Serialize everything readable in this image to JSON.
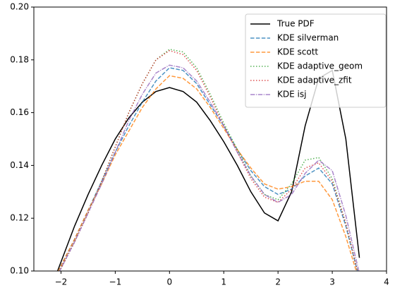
{
  "chart_data": {
    "type": "line",
    "x": [
      -2.1,
      -1.75,
      -1.5,
      -1.25,
      -1,
      -0.75,
      -0.5,
      -0.25,
      0,
      0.25,
      0.5,
      0.75,
      1,
      1.25,
      1.5,
      1.75,
      2,
      2.25,
      2.5,
      2.75,
      3,
      3.25,
      3.5
    ],
    "series": [
      {
        "name": "True PDF",
        "color": "#000000",
        "linestyle": "solid",
        "values": [
          0.098,
          0.117,
          0.129,
          0.14,
          0.15,
          0.158,
          0.164,
          0.168,
          0.1695,
          0.168,
          0.164,
          0.157,
          0.149,
          0.14,
          0.13,
          0.122,
          0.119,
          0.13,
          0.155,
          0.173,
          0.176,
          0.15,
          0.105
        ]
      },
      {
        "name": "KDE silverman",
        "color": "#1f77b4",
        "linestyle": "dashed",
        "values": [
          0.098,
          0.112,
          0.123,
          0.134,
          0.145,
          0.155,
          0.164,
          0.172,
          0.177,
          0.176,
          0.171,
          0.163,
          0.155,
          0.146,
          0.138,
          0.132,
          0.129,
          0.131,
          0.136,
          0.139,
          0.133,
          0.117,
          0.097
        ]
      },
      {
        "name": "KDE scott",
        "color": "#ff7f0e",
        "linestyle": "dashed",
        "values": [
          0.098,
          0.112,
          0.123,
          0.133,
          0.144,
          0.153,
          0.162,
          0.169,
          0.174,
          0.173,
          0.169,
          0.162,
          0.154,
          0.146,
          0.139,
          0.133,
          0.131,
          0.132,
          0.134,
          0.134,
          0.127,
          0.113,
          0.096
        ]
      },
      {
        "name": "KDE adaptive_geom",
        "color": "#2ca02c",
        "linestyle": "dotted",
        "values": [
          0.097,
          0.111,
          0.122,
          0.134,
          0.147,
          0.16,
          0.171,
          0.18,
          0.184,
          0.183,
          0.177,
          0.167,
          0.156,
          0.146,
          0.136,
          0.129,
          0.127,
          0.133,
          0.142,
          0.143,
          0.135,
          0.118,
          0.097
        ]
      },
      {
        "name": "KDE adaptive_zfit",
        "color": "#d62728",
        "linestyle": "dotted",
        "values": [
          0.097,
          0.111,
          0.122,
          0.134,
          0.147,
          0.16,
          0.171,
          0.18,
          0.1835,
          0.182,
          0.176,
          0.166,
          0.155,
          0.145,
          0.135,
          0.128,
          0.126,
          0.131,
          0.139,
          0.141,
          0.134,
          0.118,
          0.097
        ]
      },
      {
        "name": "KDE isj",
        "color": "#9467bd",
        "linestyle": "dashdot",
        "values": [
          0.097,
          0.111,
          0.122,
          0.133,
          0.145,
          0.157,
          0.167,
          0.175,
          0.178,
          0.177,
          0.172,
          0.164,
          0.155,
          0.145,
          0.136,
          0.129,
          0.126,
          0.129,
          0.137,
          0.142,
          0.138,
          0.121,
          0.099
        ]
      }
    ],
    "xlim": [
      -2.5,
      4
    ],
    "xticks": [
      {
        "value": -2,
        "label": "−2"
      },
      {
        "value": -1,
        "label": "−1"
      },
      0,
      1,
      2,
      3,
      4
    ],
    "ylim": [
      0.1,
      0.2
    ],
    "yticks": [
      {
        "value": 0.1,
        "label": "0.10"
      },
      0.12,
      0.14,
      0.16,
      0.18,
      {
        "value": 0.2,
        "label": "0.20"
      }
    ],
    "grid": false,
    "legend": "upper right"
  }
}
